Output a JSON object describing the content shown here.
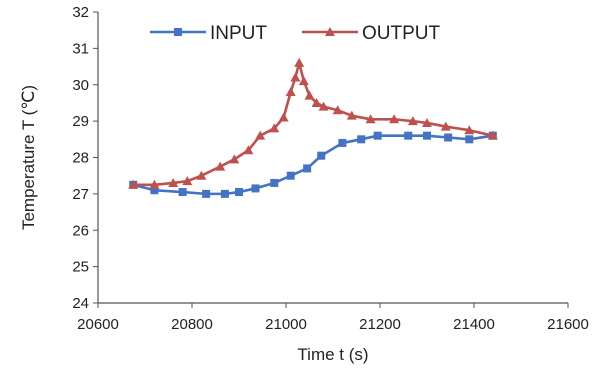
{
  "chart_data": {
    "type": "line",
    "xlabel": "Time t (s)",
    "ylabel": "Temperature T (℃)",
    "xlim": [
      20600,
      21600
    ],
    "ylim": [
      24,
      32
    ],
    "x_ticks": [
      20600,
      20800,
      21000,
      21200,
      21400,
      21600
    ],
    "y_ticks": [
      24,
      25,
      26,
      27,
      28,
      29,
      30,
      31,
      32
    ],
    "grid": false,
    "legend_placement": "top",
    "series": [
      {
        "name": "INPUT",
        "color": "#4472C4",
        "marker": "square",
        "x": [
          20675,
          20720,
          20780,
          20830,
          20870,
          20900,
          20935,
          20975,
          21010,
          21045,
          21075,
          21120,
          21160,
          21195,
          21260,
          21300,
          21345,
          21390,
          21440
        ],
        "y": [
          27.25,
          27.1,
          27.05,
          27.0,
          27.0,
          27.05,
          27.15,
          27.3,
          27.5,
          27.7,
          28.05,
          28.4,
          28.5,
          28.6,
          28.6,
          28.6,
          28.55,
          28.5,
          28.6
        ]
      },
      {
        "name": "OUTPUT",
        "color": "#C0504D",
        "marker": "triangle",
        "x": [
          20675,
          20720,
          20760,
          20790,
          20820,
          20860,
          20890,
          20920,
          20945,
          20975,
          20995,
          21010,
          21020,
          21028,
          21038,
          21050,
          21065,
          21080,
          21110,
          21140,
          21180,
          21230,
          21270,
          21300,
          21340,
          21390,
          21440
        ],
        "y": [
          27.25,
          27.25,
          27.3,
          27.35,
          27.5,
          27.75,
          27.95,
          28.2,
          28.6,
          28.8,
          29.1,
          29.8,
          30.2,
          30.6,
          30.1,
          29.7,
          29.5,
          29.4,
          29.3,
          29.15,
          29.05,
          29.05,
          29.0,
          28.95,
          28.85,
          28.75,
          28.6
        ]
      }
    ]
  }
}
